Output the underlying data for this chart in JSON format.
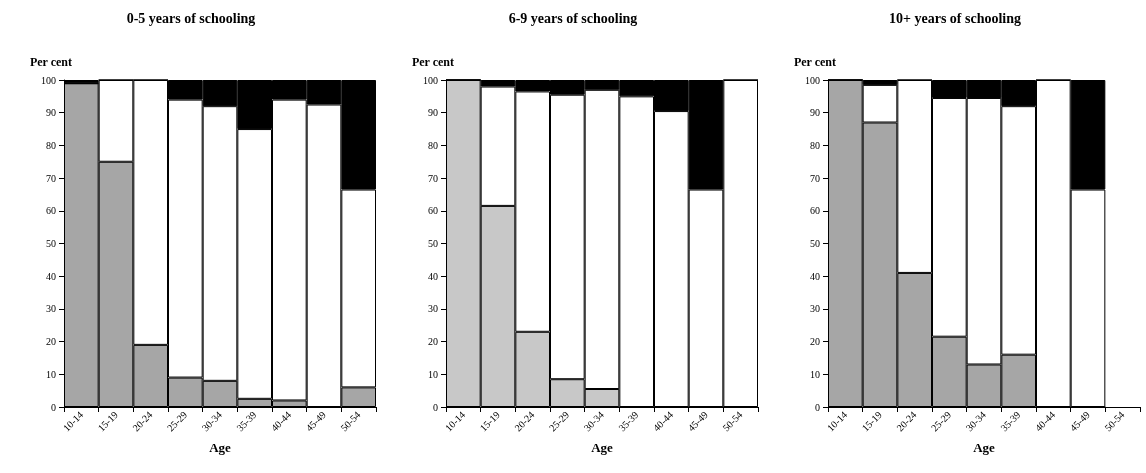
{
  "chart_data": [
    {
      "type": "bar",
      "title": "0-5 years of schooling",
      "ylabel": "Per cent",
      "xlabel": "Age",
      "stacked": true,
      "grid": false,
      "categories": [
        "10-14",
        "15-19",
        "20-24",
        "25-29",
        "30-34",
        "35-39",
        "40-44",
        "45-49",
        "50-54"
      ],
      "ylim": [
        0,
        100
      ],
      "yticks": [
        0,
        10,
        20,
        30,
        40,
        50,
        60,
        70,
        80,
        90,
        100
      ],
      "series": [
        {
          "color": "#a6a6a6",
          "values": [
            99,
            75,
            19,
            9,
            8,
            2.5,
            2,
            0,
            6
          ]
        },
        {
          "color": "#ffffff",
          "values": [
            0,
            25,
            81,
            85,
            84,
            82.5,
            92,
            92.5,
            60.5
          ]
        },
        {
          "color": "#000000",
          "values": [
            1,
            0,
            0,
            6,
            8,
            15,
            6,
            7.5,
            33.5
          ]
        }
      ]
    },
    {
      "type": "bar",
      "title": "6-9 years of schooling",
      "ylabel": "Per cent",
      "xlabel": "Age",
      "stacked": true,
      "grid": false,
      "categories": [
        "10-14",
        "15-19",
        "20-24",
        "25-29",
        "30-34",
        "35-39",
        "40-44",
        "45-49",
        "50-54"
      ],
      "ylim": [
        0,
        100
      ],
      "yticks": [
        0,
        10,
        20,
        30,
        40,
        50,
        60,
        70,
        80,
        90,
        100
      ],
      "series": [
        {
          "color": "#c8c8c8",
          "values": [
            100,
            61.5,
            23,
            8.5,
            5.5,
            0,
            0,
            0,
            0
          ]
        },
        {
          "color": "#ffffff",
          "values": [
            0,
            36.5,
            73.5,
            87,
            91.5,
            95,
            90.5,
            66.5,
            100
          ]
        },
        {
          "color": "#000000",
          "values": [
            0,
            2,
            3.5,
            4.5,
            3,
            5,
            9.5,
            33.5,
            0
          ]
        }
      ]
    },
    {
      "type": "bar",
      "title": "10+ years of schooling",
      "ylabel": "Per cent",
      "xlabel": "Age",
      "stacked": true,
      "grid": false,
      "categories": [
        "10-14",
        "15-19",
        "20-24",
        "25-29",
        "30-34",
        "35-39",
        "40-44",
        "45-49",
        "50-54"
      ],
      "ylim": [
        0,
        100
      ],
      "yticks": [
        0,
        10,
        20,
        30,
        40,
        50,
        60,
        70,
        80,
        90,
        100
      ],
      "series": [
        {
          "color": "#a6a6a6",
          "values": [
            100,
            87,
            41,
            21.5,
            13,
            16,
            0,
            0,
            null
          ]
        },
        {
          "color": "#ffffff",
          "values": [
            0,
            11.5,
            59,
            73,
            81.5,
            76,
            100,
            66.5,
            null
          ]
        },
        {
          "color": "#000000",
          "values": [
            0,
            1.5,
            0,
            5.5,
            5.5,
            8,
            0,
            33.5,
            null
          ]
        }
      ]
    }
  ]
}
